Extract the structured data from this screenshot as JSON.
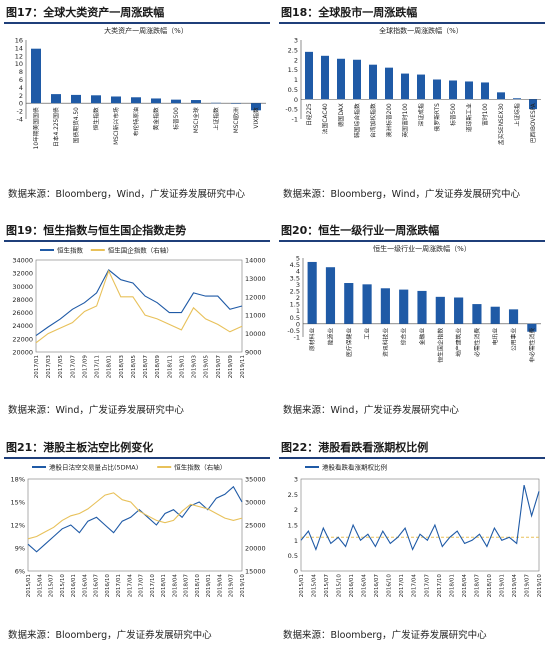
{
  "panels": {
    "p17": {
      "heading": "图17：全球大类资产一周涨跌幅",
      "source": "数据来源：Bloomberg，Wind，广发证券发展研究中心"
    },
    "p18": {
      "heading": "图18：全球股市一周涨跌幅",
      "source": "数据来源：Bloomberg，Wind，广发证券发展研究中心"
    },
    "p19": {
      "heading": "图19：恒生指数与恒生国企指数走势",
      "source": "数据来源：Wind，广发证券发展研究中心"
    },
    "p20": {
      "heading": "图20：恒生一级行业一周涨跌幅",
      "source": "数据来源：Wind，广发证券发展研究中心"
    },
    "p21": {
      "heading": "图21：港股主板沽空比例变化",
      "source": "数据来源：Bloomberg，广发证券发展研究中心"
    },
    "p22": {
      "heading": "图22：港股看跌看涨期权比例",
      "source": "数据来源：Bloomberg，广发证券发展研究中心"
    }
  },
  "chart_data": [
    {
      "id": "p17",
      "type": "bar",
      "title": "大类资产一周涨跌幅（%）",
      "color": "#1f5aa6",
      "categories": [
        "10年期美国国债",
        "日本4.225国债",
        "国债期货4.50",
        "恒生指数",
        "MSCI新兴市场",
        "布伦特原油",
        "黄金指数",
        "标普500",
        "MSCI全球",
        "上证指数",
        "MSCI欧洲",
        "VIX指数"
      ],
      "values": [
        13.8,
        2.3,
        2.1,
        2.0,
        1.7,
        1.5,
        1.2,
        0.9,
        0.8,
        0.1,
        0.0,
        -1.8
      ],
      "ylim": [
        -4,
        16
      ],
      "yticks": [
        -4,
        -2,
        0,
        2,
        4,
        6,
        8,
        10,
        12,
        14,
        16
      ]
    },
    {
      "id": "p18",
      "type": "bar",
      "title": "全球指数一周涨跌幅（%）",
      "color": "#1f5aa6",
      "categories": [
        "日经225",
        "法国CAC40",
        "德国DAX",
        "韩国综合指数",
        "台湾加权指数",
        "澳洲标普200",
        "英国富时100",
        "深证成指",
        "俄罗斯RTS",
        "标普500",
        "道琼斯工业",
        "富时100",
        "孟买SENSEX30",
        "上证综指",
        "巴西IBOVESPA"
      ],
      "values": [
        2.4,
        2.2,
        2.05,
        2.0,
        1.75,
        1.6,
        1.3,
        1.25,
        1.0,
        0.95,
        0.9,
        0.85,
        0.35,
        0.05,
        -0.5
      ],
      "ylim": [
        -1,
        3
      ],
      "yticks": [
        -1,
        -0.5,
        0,
        0.5,
        1,
        1.5,
        2,
        2.5,
        3
      ]
    },
    {
      "id": "p19",
      "type": "line",
      "series": [
        {
          "name": "恒生指数",
          "color": "#1f5aa6",
          "axis": "left",
          "x": [
            "2017/01",
            "2017/03",
            "2017/05",
            "2017/07",
            "2017/09",
            "2017/11",
            "2018/01",
            "2018/03",
            "2018/05",
            "2018/07",
            "2018/09",
            "2018/11",
            "2019/01",
            "2019/03",
            "2019/05",
            "2019/07",
            "2019/09",
            "2019/11"
          ],
          "values": [
            22500,
            23800,
            25000,
            26500,
            27500,
            29000,
            32500,
            31000,
            30500,
            28500,
            27500,
            26000,
            26000,
            29000,
            28500,
            28500,
            26500,
            27000
          ]
        },
        {
          "name": "恒生国企指数（右轴）",
          "color": "#e8c15a",
          "axis": "right",
          "x": [
            "2017/01",
            "2017/03",
            "2017/05",
            "2017/07",
            "2017/09",
            "2017/11",
            "2018/01",
            "2018/03",
            "2018/05",
            "2018/07",
            "2018/09",
            "2018/11",
            "2019/01",
            "2019/03",
            "2019/05",
            "2019/07",
            "2019/09",
            "2019/11"
          ],
          "values": [
            9500,
            10000,
            10300,
            10600,
            11200,
            11500,
            13400,
            12000,
            12000,
            11000,
            10800,
            10500,
            10200,
            11400,
            10800,
            10500,
            10100,
            10400
          ]
        }
      ],
      "ylim_left": [
        20000,
        34000
      ],
      "yticks_left": [
        20000,
        22000,
        24000,
        26000,
        28000,
        30000,
        32000,
        34000
      ],
      "ylim_right": [
        9000,
        14000
      ],
      "yticks_right": [
        9000,
        10000,
        11000,
        12000,
        13000,
        14000
      ],
      "xticks": [
        "2017/01",
        "2017/03",
        "2017/05",
        "2017/07",
        "2017/09",
        "2017/11",
        "2018/01",
        "2018/03",
        "2018/05",
        "2018/07",
        "2018/09",
        "2018/11",
        "2019/01",
        "2019/03",
        "2019/05",
        "2019/07",
        "2019/09",
        "2019/11"
      ]
    },
    {
      "id": "p20",
      "type": "bar",
      "title": "恒生一级行业一周涨跌幅（%）",
      "color": "#1f5aa6",
      "categories": [
        "原材料业",
        "能源业",
        "医疗保健业",
        "工业",
        "资讯科技业",
        "综合业",
        "金融业",
        "恒生国企指数",
        "地产建筑业",
        "必需性消费",
        "电讯业",
        "公用事业",
        "非必需性消费"
      ],
      "values": [
        4.7,
        4.3,
        3.1,
        3.0,
        2.7,
        2.6,
        2.5,
        2.05,
        2.0,
        1.5,
        1.3,
        1.1,
        -0.6
      ],
      "ylim": [
        -1,
        5
      ],
      "yticks": [
        -1,
        -0.5,
        0,
        0.5,
        1,
        1.5,
        2,
        2.5,
        3,
        3.5,
        4,
        4.5,
        5
      ]
    },
    {
      "id": "p21",
      "type": "line",
      "series": [
        {
          "name": "港股日沽空交易量占比(5DMA)",
          "color": "#1f5aa6",
          "axis": "left",
          "values": [
            9.5,
            8.5,
            9.5,
            10.5,
            11.5,
            12,
            11,
            12.5,
            13,
            12,
            11,
            12.5,
            13,
            14,
            13,
            12,
            13.5,
            14,
            13,
            14.5,
            15,
            14,
            15.5,
            16,
            17,
            15
          ]
        },
        {
          "name": "恒生指数（右轴）",
          "color": "#e8c15a",
          "axis": "right",
          "values": [
            22000,
            22500,
            23500,
            24500,
            26000,
            27000,
            27500,
            28500,
            30000,
            31500,
            32000,
            30500,
            30000,
            28000,
            27000,
            26000,
            25500,
            26000,
            28000,
            29500,
            29000,
            28500,
            27500,
            26500,
            26000,
            26500
          ]
        }
      ],
      "ylim_left": [
        6,
        18
      ],
      "yticks_left": [
        6,
        9,
        12,
        15,
        18
      ],
      "ylim_right": [
        15000,
        35000
      ],
      "yticks_right": [
        15000,
        20000,
        25000,
        30000,
        35000
      ],
      "xticks": [
        "2015/01",
        "2015/04",
        "2015/07",
        "2015/10",
        "2016/01",
        "2016/04",
        "2016/07",
        "2016/10",
        "2017/01",
        "2017/04",
        "2017/07",
        "2017/10",
        "2018/01",
        "2018/04",
        "2018/07",
        "2018/10",
        "2019/01",
        "2019/04",
        "2019/07",
        "2019/10"
      ]
    },
    {
      "id": "p22",
      "type": "line",
      "series": [
        {
          "name": "港股看跌看涨期权比例",
          "color": "#1f5aa6",
          "axis": "left",
          "values": [
            1.0,
            1.3,
            0.7,
            1.4,
            0.9,
            1.1,
            0.8,
            1.5,
            1.0,
            1.2,
            0.8,
            1.3,
            0.9,
            1.1,
            1.4,
            0.7,
            1.2,
            1.0,
            1.5,
            0.8,
            1.1,
            1.3,
            0.9,
            1.0,
            1.2,
            0.8,
            1.4,
            1.0,
            1.1,
            0.9,
            2.8,
            1.8,
            2.6
          ]
        }
      ],
      "reference_color": "#e8c15a",
      "ylim": [
        0,
        3
      ],
      "yticks": [
        0,
        0.5,
        1,
        1.5,
        2,
        2.5,
        3
      ],
      "xticks": [
        "2015/01",
        "2015/04",
        "2015/07",
        "2015/10",
        "2016/01",
        "2016/04",
        "2016/07",
        "2016/10",
        "2017/01",
        "2017/04",
        "2017/07",
        "2017/10",
        "2018/01",
        "2018/04",
        "2018/07",
        "2018/10",
        "2019/01",
        "2019/04",
        "2019/07",
        "2019/10"
      ]
    }
  ]
}
